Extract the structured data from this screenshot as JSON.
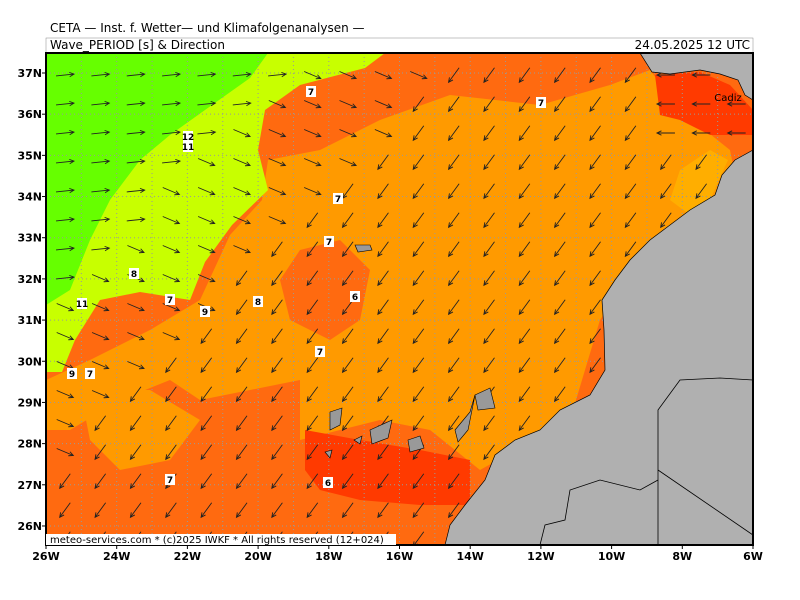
{
  "header": {
    "institute": "CETA — Inst. f. Wetter— und Klimafolgenanalysen —",
    "parameter": "Wave_PERIOD [s] & Direction",
    "valid_time": "24.05.2025 12 UTC"
  },
  "footer": "meteo-services.com * (c)2025 IWKF * All rights reserved (12+024)",
  "axes": {
    "latitude_labels": [
      "37N",
      "36N",
      "35N",
      "34N",
      "33N",
      "32N",
      "31N",
      "30N",
      "29N",
      "28N",
      "27N",
      "26N"
    ],
    "longitude_labels": [
      "26W",
      "24W",
      "22W",
      "20W",
      "18W",
      "16W",
      "14W",
      "12W",
      "10W",
      "8W",
      "6W"
    ]
  },
  "contour_labels": [
    "7",
    "7",
    "12",
    "11",
    "7",
    "7",
    "8",
    "7",
    "9",
    "8",
    "11",
    "6",
    "7",
    "9",
    "7",
    "7",
    "6"
  ],
  "place_labels": [
    "Cadiz"
  ]
}
